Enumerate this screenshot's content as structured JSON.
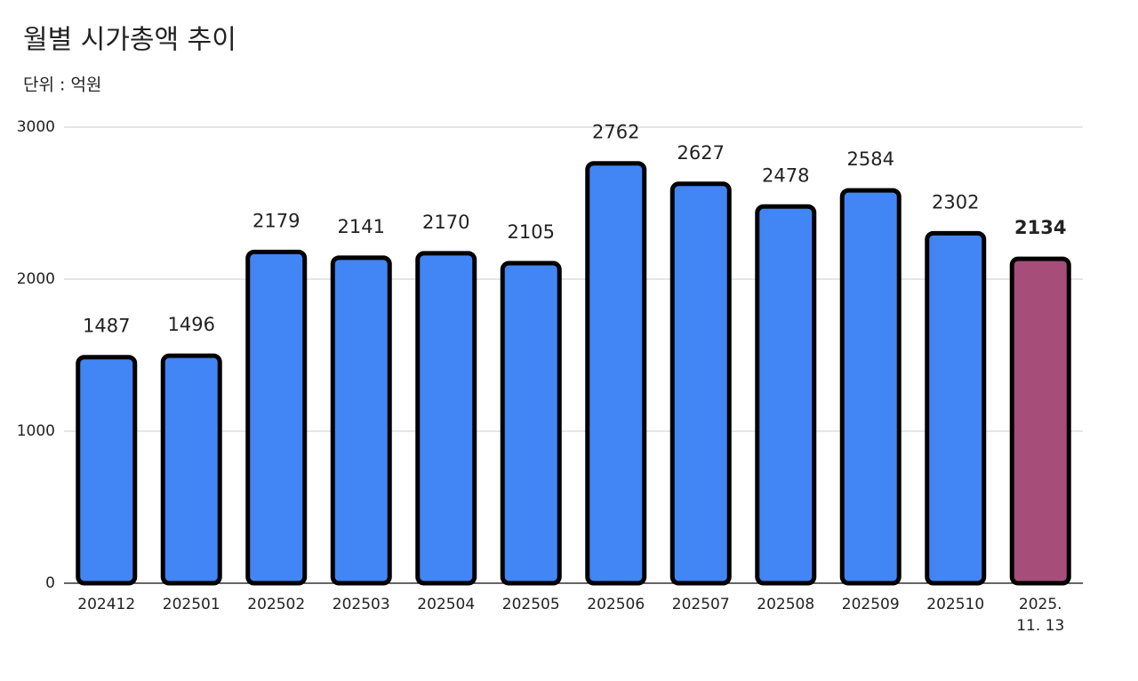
{
  "chart_data": {
    "type": "bar",
    "title": "월별 시가총액 추이",
    "subtitle": "단위 : 억원",
    "categories": [
      "202412",
      "202501",
      "202502",
      "202503",
      "202504",
      "202505",
      "202506",
      "202507",
      "202508",
      "202509",
      "202510",
      "2025.\n11. 13"
    ],
    "values": [
      1487,
      1496,
      2179,
      2141,
      2170,
      2105,
      2762,
      2627,
      2478,
      2584,
      2302,
      2134
    ],
    "colors": [
      "#4285f4",
      "#4285f4",
      "#4285f4",
      "#4285f4",
      "#4285f4",
      "#4285f4",
      "#4285f4",
      "#4285f4",
      "#4285f4",
      "#4285f4",
      "#4285f4",
      "#a64d79"
    ],
    "value_labels_bold": [
      false,
      false,
      false,
      false,
      false,
      false,
      false,
      false,
      false,
      false,
      false,
      true
    ],
    "ylim": [
      0,
      3000
    ],
    "yticks": [
      0,
      1000,
      2000,
      3000
    ],
    "grid": true
  }
}
